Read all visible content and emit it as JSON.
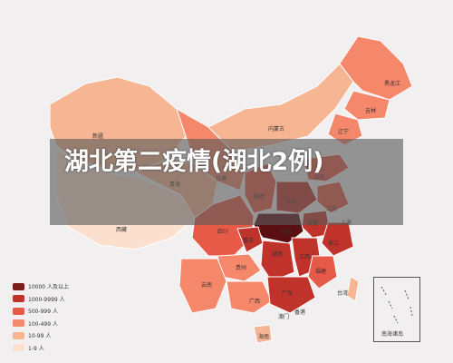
{
  "title": "湖北第二疫情(湖北2例)",
  "colors": {
    "background": "#f1efef",
    "level_10000_plus": "#7b1b1b",
    "level_1000_9999": "#c0332b",
    "level_500_999": "#e65a47",
    "level_100_499": "#f5876b",
    "level_10_99": "#f7b693",
    "level_1_9": "#fbe0cf",
    "hubei": "#5a1013"
  },
  "legend": [
    {
      "label": "10000 人及以上",
      "color_key": "level_10000_plus"
    },
    {
      "label": "1000-9999 人",
      "color_key": "level_1000_9999"
    },
    {
      "label": "500-999 人",
      "color_key": "level_500_999"
    },
    {
      "label": "100-499 人",
      "color_key": "level_100_499"
    },
    {
      "label": "10-99 人",
      "color_key": "level_10_99"
    },
    {
      "label": "1-9 人",
      "color_key": "level_1_9"
    }
  ],
  "provinces": {
    "xinjiang": "新疆",
    "xizang": "西藏",
    "qinghai": "青海",
    "gansu": "甘肃",
    "neimenggu": "内蒙古",
    "heilongjiang": "黑龙江",
    "jilin": "吉林",
    "liaoning": "辽宁",
    "shaanxi": "陕西",
    "henan": "河南",
    "shandong": "山东",
    "jiangsu": "江苏",
    "anhui": "安徽",
    "hubei": "湖北",
    "shanghai": "上海",
    "sichuan": "四川",
    "chongqing": "重庆",
    "zhejiang": "浙江",
    "hunan": "湖南",
    "jiangxi": "江西",
    "guizhou": "贵州",
    "yunnan": "云南",
    "guangxi": "广西",
    "guangdong": "广东",
    "fujian": "福建",
    "taiwan": "台湾",
    "hongkong": "香港",
    "macau": "澳门",
    "hainan": "海南"
  },
  "inset_label": "南海诸岛"
}
